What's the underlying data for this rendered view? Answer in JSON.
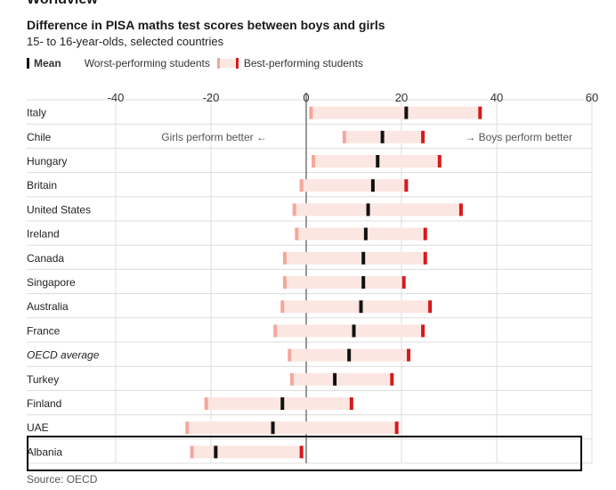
{
  "header": {
    "section": "Worldview",
    "source": "Source: OECD"
  },
  "legend": {
    "mean": "Mean",
    "worst": "Worst-performing students",
    "best": "Best-performing students"
  },
  "colors": {
    "mean": "#111111",
    "worst": "#f4a79a",
    "best": "#d7191c",
    "band": "#fce6e1",
    "grid": "#dcdcdc",
    "zero": "#555555"
  },
  "chart_data": {
    "type": "range",
    "title": "Difference in PISA maths test scores between boys and girls",
    "subtitle": "15- to 16-year-olds, selected countries",
    "xlim": [
      -40,
      60
    ],
    "xticks": [
      -40,
      -20,
      0,
      20,
      40,
      60
    ],
    "annotations": {
      "left": "Girls perform better ←",
      "right": "→ Boys perform better"
    },
    "rows": [
      {
        "label": "Italy",
        "worst": 1,
        "mean": 21,
        "best": 36.5
      },
      {
        "label": "Chile",
        "worst": 8,
        "mean": 16,
        "best": 24.5
      },
      {
        "label": "Hungary",
        "worst": 1.5,
        "mean": 15,
        "best": 28
      },
      {
        "label": "Britain",
        "worst": -1,
        "mean": 14,
        "best": 21
      },
      {
        "label": "United States",
        "worst": -2.5,
        "mean": 13,
        "best": 32.5
      },
      {
        "label": "Ireland",
        "worst": -2,
        "mean": 12.5,
        "best": 25
      },
      {
        "label": "Canada",
        "worst": -4.5,
        "mean": 12,
        "best": 25
      },
      {
        "label": "Singapore",
        "worst": -4.5,
        "mean": 12,
        "best": 20.5
      },
      {
        "label": "Australia",
        "worst": -5,
        "mean": 11.5,
        "best": 26
      },
      {
        "label": "France",
        "worst": -6.5,
        "mean": 10,
        "best": 24.5
      },
      {
        "label": "OECD average",
        "worst": -3.5,
        "mean": 9,
        "best": 21.5,
        "italic": true
      },
      {
        "label": "Turkey",
        "worst": -3,
        "mean": 6,
        "best": 18
      },
      {
        "label": "Finland",
        "worst": -21,
        "mean": -5,
        "best": 9.5
      },
      {
        "label": "UAE",
        "worst": -25,
        "mean": -7,
        "best": 19
      },
      {
        "label": "Albania",
        "worst": -24,
        "mean": -19,
        "best": -1
      }
    ]
  }
}
